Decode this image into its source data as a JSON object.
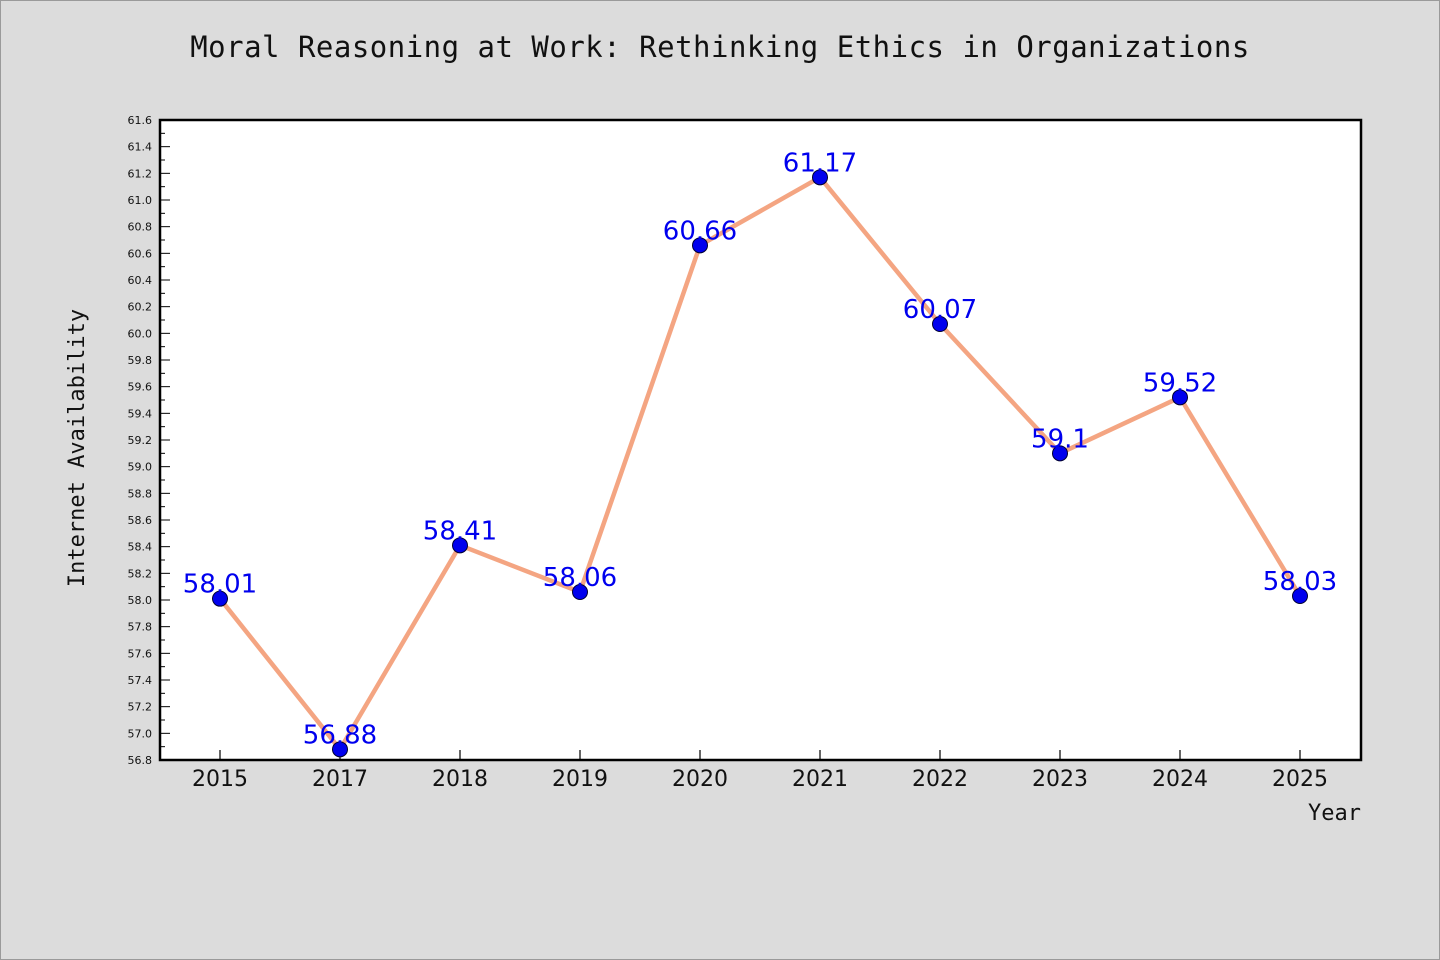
{
  "chart_data": {
    "type": "line",
    "title": "Moral Reasoning at Work: Rethinking Ethics in Organizations",
    "xlabel": "Year",
    "ylabel": "Internet Availability",
    "categories": [
      "2015",
      "2017",
      "2018",
      "2019",
      "2020",
      "2021",
      "2022",
      "2023",
      "2024",
      "2025"
    ],
    "values": [
      58.01,
      56.88,
      58.41,
      58.06,
      60.66,
      61.17,
      60.07,
      59.1,
      59.52,
      58.03
    ],
    "data_labels": [
      "58.01",
      "56.88",
      "58.41",
      "58.06",
      "60.66",
      "61.17",
      "60.07",
      "59.1",
      "59.52",
      "58.03"
    ],
    "ylim": [
      56.8,
      61.6
    ],
    "y_ticks": [
      "56.8",
      "57.0",
      "57.2",
      "57.4",
      "57.6",
      "57.8",
      "58.0",
      "58.2",
      "58.4",
      "58.6",
      "58.8",
      "59.0",
      "59.2",
      "59.4",
      "59.6",
      "59.8",
      "60.0",
      "60.2",
      "60.4",
      "60.6",
      "60.8",
      "61.0",
      "61.2",
      "61.4",
      "61.6"
    ],
    "grid": false,
    "legend": "none",
    "colors": {
      "line": "#f4a582",
      "marker": "#0000ee",
      "label": "#0000ee",
      "plot_background": "#ffffff",
      "figure_background": "#dcdcdc"
    }
  }
}
